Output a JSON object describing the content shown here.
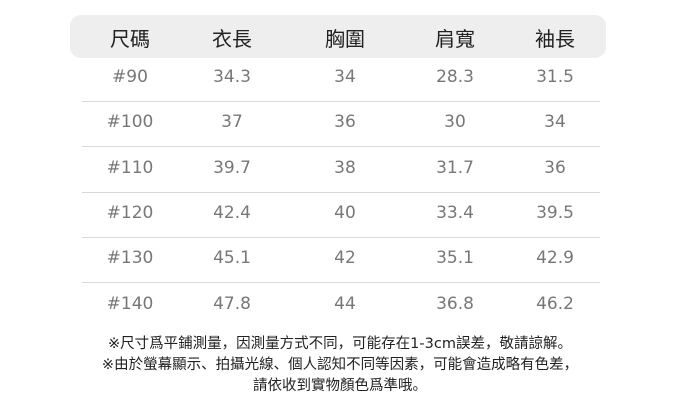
{
  "table": {
    "headers": [
      "尺碼",
      "衣長",
      "胸圍",
      "肩寬",
      "袖長"
    ],
    "rows": [
      [
        "#90",
        "34.3",
        "34",
        "28.3",
        "31.5"
      ],
      [
        "#100",
        "37",
        "36",
        "30",
        "34"
      ],
      [
        "#110",
        "39.7",
        "38",
        "31.7",
        "36"
      ],
      [
        "#120",
        "42.4",
        "40",
        "33.4",
        "39.5"
      ],
      [
        "#130",
        "45.1",
        "42",
        "35.1",
        "42.9"
      ],
      [
        "#140",
        "47.8",
        "44",
        "36.8",
        "46.2"
      ]
    ]
  },
  "notes": [
    "※尺寸爲平鋪測量，因測量方式不同，可能存在1-3cm誤差，敬請諒解。",
    "※由於螢幕顯示、拍攝光線、個人認知不同等因素，可能會造成略有色差，",
    "請依收到實物顏色爲準哦。"
  ]
}
